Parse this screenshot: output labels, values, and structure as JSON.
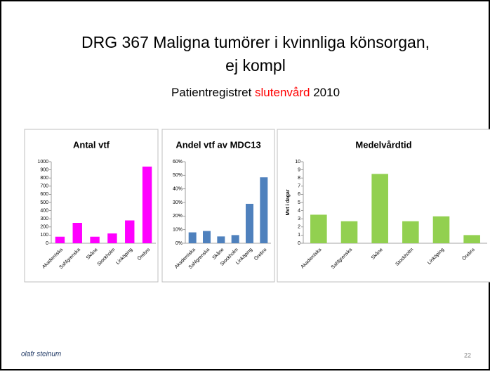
{
  "slide": {
    "title_line1": "DRG 367 Maligna tumörer i kvinnliga könsorgan,",
    "title_line2": "ej kompl",
    "subtitle_start": "Patientregistret",
    "subtitle_highlight": "slutenvård",
    "subtitle_end": "2010",
    "footer": "olafr steinum",
    "page_number": "22"
  },
  "chart_data": [
    {
      "type": "bar",
      "title": "Antal vtf",
      "categories": [
        "Akademiska",
        "Sahlgrenska",
        "Skåne",
        "Stockholm",
        "Linköping",
        "Örebro"
      ],
      "values": [
        80,
        250,
        80,
        120,
        280,
        940
      ],
      "color": "#ff00ff",
      "ylim": [
        0,
        1000
      ],
      "yticks": [
        0,
        100,
        200,
        300,
        400,
        500,
        600,
        700,
        800,
        900,
        1000
      ]
    },
    {
      "type": "bar",
      "title": "Andel vtf av MDC13",
      "categories": [
        "Akademiska",
        "Sahlgrenska",
        "Skåne",
        "Stockholm",
        "Linköping",
        "Örebro"
      ],
      "values": [
        8,
        9,
        5,
        6,
        29,
        48.5
      ],
      "color": "#4f81bd",
      "ylim": [
        0,
        60
      ],
      "yticks": [
        {
          "value": 0,
          "label": "0%"
        },
        {
          "value": 10,
          "label": "10%"
        },
        {
          "value": 20,
          "label": "20%"
        },
        {
          "value": 30,
          "label": "30%"
        },
        {
          "value": 40,
          "label": "40%"
        },
        {
          "value": 50,
          "label": "50%"
        },
        {
          "value": 60,
          "label": "60%"
        }
      ]
    },
    {
      "type": "bar",
      "title": "Medelvårdtid",
      "ylabel": "Mvt i dagar",
      "categories": [
        "Akademiska",
        "Sahlgrenska",
        "Skåne",
        "Stockholm",
        "Linköping",
        "Örebro"
      ],
      "values": [
        3.5,
        2.7,
        8.5,
        2.7,
        3.3,
        1.0
      ],
      "color": "#92d050",
      "ylim": [
        0,
        10
      ],
      "yticks": [
        0,
        1,
        2,
        3,
        4,
        5,
        6,
        7,
        8,
        9,
        10
      ]
    }
  ]
}
